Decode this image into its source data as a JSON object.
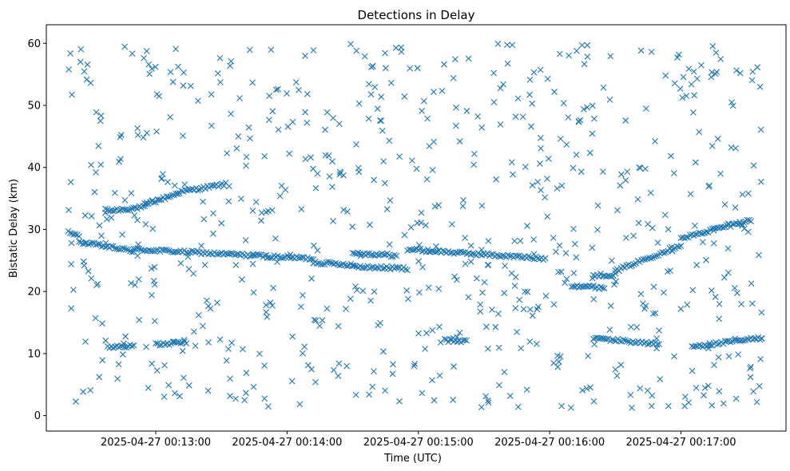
{
  "chart_data": {
    "type": "scatter",
    "title": "Detections in Delay",
    "xlabel": "Time (UTC)",
    "ylabel": "Bistatic Delay (km)",
    "marker": "x",
    "color": "#1f77b4",
    "grid": false,
    "legend": "none",
    "xlim": [
      "2025-04-27 00:12:10",
      "2025-04-27 00:17:48"
    ],
    "ylim": [
      -2.5,
      63
    ],
    "xticks": [
      "2025-04-27 00:13:00",
      "2025-04-27 00:14:00",
      "2025-04-27 00:15:00",
      "2025-04-27 00:16:00",
      "2025-04-27 00:17:00"
    ],
    "yticks": [
      0,
      10,
      20,
      30,
      40,
      50,
      60
    ],
    "x_range": [
      "2025-04-27 00:12:20",
      "2025-04-27 00:17:37"
    ],
    "tracks": [
      {
        "x": [
          "2025-04-27 00:12:20",
          "2025-04-27 00:12:25"
        ],
        "y": [
          29.5,
          29.0
        ]
      },
      {
        "x": [
          "2025-04-27 00:12:38",
          "2025-04-27 00:12:55"
        ],
        "y": [
          33.0,
          33.6
        ]
      },
      {
        "x": [
          "2025-04-27 00:12:55",
          "2025-04-27 00:13:10"
        ],
        "y": [
          34.0,
          35.8
        ]
      },
      {
        "x": [
          "2025-04-27 00:13:10",
          "2025-04-27 00:13:32"
        ],
        "y": [
          36.0,
          37.3
        ]
      },
      {
        "x": [
          "2025-04-27 00:12:25",
          "2025-04-27 00:12:50"
        ],
        "y": [
          28.0,
          26.5
        ]
      },
      {
        "x": [
          "2025-04-27 00:12:50",
          "2025-04-27 00:14:12"
        ],
        "y": [
          26.8,
          25.3
        ]
      },
      {
        "x": [
          "2025-04-27 00:14:12",
          "2025-04-27 00:14:30"
        ],
        "y": [
          24.7,
          24.3
        ]
      },
      {
        "x": [
          "2025-04-27 00:14:30",
          "2025-04-27 00:14:50"
        ],
        "y": [
          26.2,
          25.8
        ]
      },
      {
        "x": [
          "2025-04-27 00:14:30",
          "2025-04-27 00:14:55"
        ],
        "y": [
          24.0,
          23.7
        ]
      },
      {
        "x": [
          "2025-04-27 00:14:55",
          "2025-04-27 00:15:58"
        ],
        "y": [
          26.8,
          25.3
        ]
      },
      {
        "x": [
          "2025-04-27 00:16:10",
          "2025-04-27 00:16:25"
        ],
        "y": [
          21.0,
          20.6
        ]
      },
      {
        "x": [
          "2025-04-27 00:16:20",
          "2025-04-27 00:16:30"
        ],
        "y": [
          22.6,
          22.7
        ]
      },
      {
        "x": [
          "2025-04-27 00:16:30",
          "2025-04-27 00:17:00"
        ],
        "y": [
          23.3,
          27.5
        ]
      },
      {
        "x": [
          "2025-04-27 00:17:00",
          "2025-04-27 00:17:15"
        ],
        "y": [
          28.5,
          30.0
        ]
      },
      {
        "x": [
          "2025-04-27 00:17:15",
          "2025-04-27 00:17:32"
        ],
        "y": [
          30.0,
          31.5
        ]
      },
      {
        "x": [
          "2025-04-27 00:12:38",
          "2025-04-27 00:12:50"
        ],
        "y": [
          11.0,
          11.3
        ]
      },
      {
        "x": [
          "2025-04-27 00:13:00",
          "2025-04-27 00:13:14"
        ],
        "y": [
          11.4,
          11.8
        ]
      },
      {
        "x": [
          "2025-04-27 00:15:12",
          "2025-04-27 00:15:22"
        ],
        "y": [
          12.1,
          12.0
        ]
      },
      {
        "x": [
          "2025-04-27 00:16:20",
          "2025-04-27 00:16:50"
        ],
        "y": [
          12.5,
          11.5
        ]
      },
      {
        "x": [
          "2025-04-27 00:17:05",
          "2025-04-27 00:17:37"
        ],
        "y": [
          11.1,
          12.5
        ]
      }
    ],
    "scatter_noise": {
      "count": 700,
      "y_range": [
        1,
        60
      ]
    }
  }
}
